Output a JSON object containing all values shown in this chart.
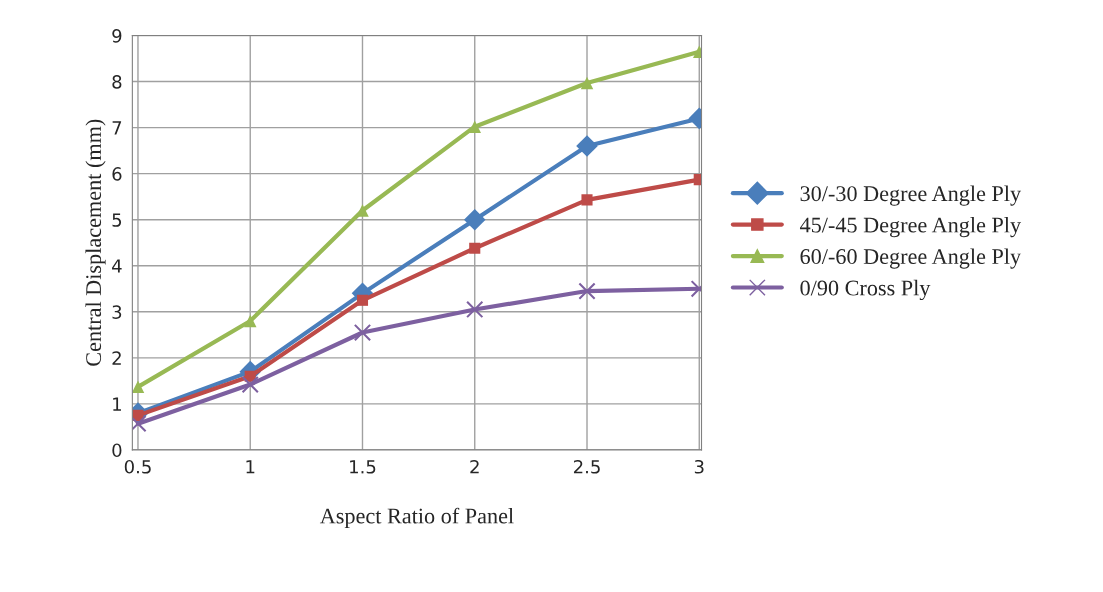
{
  "chart_data": {
    "type": "line",
    "xlabel": "Aspect Ratio of Panel",
    "ylabel": "Central Displacement (mm)",
    "categories": [
      "0.5",
      "1",
      "1.5",
      "2",
      "2.5",
      "3"
    ],
    "ylim": [
      0,
      9
    ],
    "yticks": [
      0,
      1,
      2,
      3,
      4,
      5,
      6,
      7,
      8,
      9
    ],
    "grid": true,
    "legend": "right",
    "series": [
      {
        "name": "30/-30 Degree Angle Ply",
        "color": "#4a7ebb",
        "marker": "diamond",
        "values": [
          0.8,
          1.7,
          3.4,
          5.0,
          6.6,
          7.2
        ]
      },
      {
        "name": "45/-45 Degree Angle Ply",
        "color": "#be4b48",
        "marker": "square",
        "values": [
          0.75,
          1.6,
          3.25,
          4.38,
          5.43,
          5.87
        ]
      },
      {
        "name": "60/-60 Degree Angle Ply",
        "color": "#98b954",
        "marker": "triangle",
        "values": [
          1.37,
          2.8,
          5.2,
          7.02,
          7.97,
          8.65
        ]
      },
      {
        "name": "0/90 Cross Ply",
        "color": "#7d60a0",
        "marker": "cross",
        "values": [
          0.57,
          1.42,
          2.55,
          3.05,
          3.45,
          3.5
        ]
      }
    ]
  }
}
